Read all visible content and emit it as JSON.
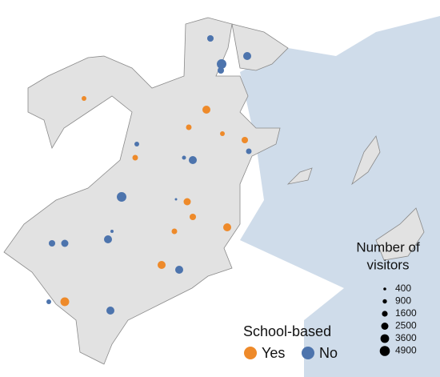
{
  "legend_group": {
    "title": "School-based",
    "items": [
      {
        "label": "Yes",
        "color": "#ee8a2a"
      },
      {
        "label": "No",
        "color": "#4d74ad"
      }
    ]
  },
  "legend_size": {
    "title_lines": [
      "Number of",
      "visitors"
    ],
    "values": [
      400,
      900,
      1600,
      2500,
      3600,
      4900
    ]
  },
  "points": [
    {
      "group": 1,
      "visitors": 2000
    },
    {
      "group": 1,
      "visitors": 4400
    },
    {
      "group": 1,
      "visitors": 2000
    },
    {
      "group": 1,
      "visitors": 3100
    },
    {
      "group": 1,
      "visitors": 1100
    },
    {
      "group": 1,
      "visitors": 770
    },
    {
      "group": 1,
      "visitors": 3100
    },
    {
      "group": 1,
      "visitors": 1500
    },
    {
      "group": 1,
      "visitors": 4400
    },
    {
      "group": 1,
      "visitors": 280
    },
    {
      "group": 1,
      "visitors": 500
    },
    {
      "group": 1,
      "visitors": 2000
    },
    {
      "group": 1,
      "visitors": 2500
    },
    {
      "group": 1,
      "visitors": 3100
    },
    {
      "group": 1,
      "visitors": 3100
    },
    {
      "group": 1,
      "visitors": 1100
    },
    {
      "group": 1,
      "visitors": 3100
    },
    {
      "group": 0,
      "visitors": 1100
    },
    {
      "group": 0,
      "visitors": 3100
    },
    {
      "group": 0,
      "visitors": 1500
    },
    {
      "group": 0,
      "visitors": 1100
    },
    {
      "group": 0,
      "visitors": 2000
    },
    {
      "group": 0,
      "visitors": 1500
    },
    {
      "group": 0,
      "visitors": 2500
    },
    {
      "group": 0,
      "visitors": 2000
    },
    {
      "group": 0,
      "visitors": 1500
    },
    {
      "group": 0,
      "visitors": 3100
    },
    {
      "group": 0,
      "visitors": 3100
    },
    {
      "group": 0,
      "visitors": 3700
    }
  ]
}
